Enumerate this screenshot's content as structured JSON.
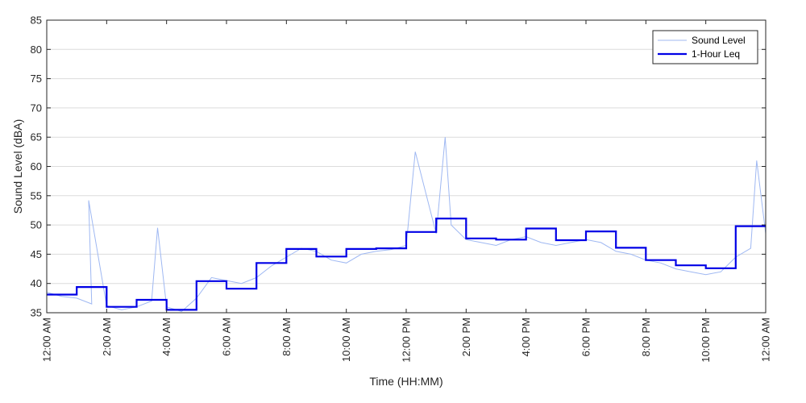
{
  "colors": {
    "raw_line": "#9fb8f2",
    "leq_line": "#0000e6",
    "grid": "#dcdcdc",
    "axis": "#262626"
  },
  "chart_data": {
    "type": "line",
    "title": "",
    "xlabel": "Time (HH:MM)",
    "ylabel": "Sound Level (dBA)",
    "xlim": [
      0,
      24
    ],
    "ylim": [
      35,
      85
    ],
    "grid": "horizontal",
    "legend_position": "top-right",
    "x_tick_labels": [
      "12:00 AM",
      "2:00 AM",
      "4:00 AM",
      "6:00 AM",
      "8:00 AM",
      "10:00 AM",
      "12:00 PM",
      "2:00 PM",
      "4:00 PM",
      "6:00 PM",
      "8:00 PM",
      "10:00 PM",
      "12:00 AM"
    ],
    "y_ticks": [
      35,
      40,
      45,
      50,
      55,
      60,
      65,
      70,
      75,
      80,
      85
    ],
    "series": [
      {
        "name": "Sound Level",
        "style": "thin",
        "x": [
          0,
          0.5,
          1,
          1.5,
          1.4,
          2,
          2.5,
          3,
          3.5,
          3.7,
          4,
          4.5,
          5,
          5.5,
          6,
          6.5,
          7,
          7.5,
          8,
          8.5,
          9,
          9.5,
          10,
          10.5,
          11,
          11.5,
          12,
          12.3,
          13,
          13.3,
          13.5,
          14,
          14.5,
          15,
          15.5,
          16,
          16.5,
          17,
          17.5,
          18,
          18.5,
          19,
          19.5,
          20,
          20.5,
          21,
          21.5,
          22,
          22.5,
          23,
          23.5,
          23.7,
          24
        ],
        "y": [
          38.5,
          37.8,
          37.5,
          36.5,
          54.2,
          36.2,
          35.5,
          36.0,
          37.0,
          49.5,
          36.0,
          35.2,
          37.5,
          41.0,
          40.5,
          40.0,
          41.0,
          43.0,
          44.5,
          46.0,
          45.5,
          44.0,
          43.5,
          45.0,
          45.5,
          45.8,
          46.5,
          62.5,
          48.5,
          65.0,
          50.0,
          47.5,
          47.0,
          46.5,
          47.5,
          48.0,
          47.0,
          46.5,
          47.0,
          47.5,
          47.0,
          45.5,
          45.0,
          44.0,
          43.5,
          42.5,
          42.0,
          41.5,
          42.0,
          44.5,
          46.0,
          61.0,
          48.5
        ]
      },
      {
        "name": "1-Hour Leq",
        "style": "step",
        "x": [
          0,
          1,
          2,
          3,
          4,
          5,
          6,
          7,
          8,
          9,
          10,
          11,
          12,
          13,
          14,
          15,
          16,
          17,
          18,
          19,
          20,
          21,
          22,
          23
        ],
        "y": [
          38.1,
          39.4,
          36.0,
          37.2,
          35.5,
          40.4,
          39.1,
          43.5,
          45.9,
          44.6,
          45.9,
          46.0,
          48.8,
          51.1,
          47.7,
          47.5,
          49.4,
          47.4,
          48.9,
          46.1,
          44.0,
          43.1,
          42.6,
          49.8
        ]
      }
    ]
  }
}
